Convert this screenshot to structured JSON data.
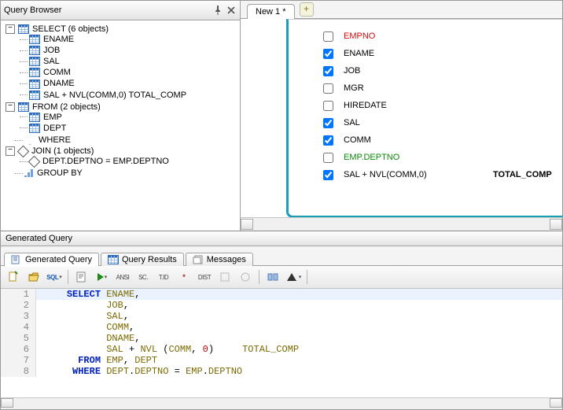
{
  "qb": {
    "title": "Query Browser",
    "tree": {
      "select": {
        "label": "SELECT   (6 objects)",
        "cols": [
          "ENAME",
          "JOB",
          "SAL",
          "COMM",
          "DNAME",
          "SAL + NVL(COMM,0) TOTAL_COMP"
        ]
      },
      "from": {
        "label": "FROM   (2 objects)",
        "tables": [
          "EMP",
          "DEPT"
        ]
      },
      "where": {
        "label": "WHERE"
      },
      "join": {
        "label": "JOIN   (1 objects)",
        "items": [
          "DEPT.DEPTNO = EMP.DEPTNO"
        ]
      },
      "groupby": {
        "label": "GROUP BY"
      }
    }
  },
  "editorTabs": {
    "new1": "New 1 *"
  },
  "columns": [
    {
      "name": "EMPNO",
      "checked": false,
      "cls": "c-red"
    },
    {
      "name": "ENAME",
      "checked": true
    },
    {
      "name": "JOB",
      "checked": true
    },
    {
      "name": "MGR",
      "checked": false
    },
    {
      "name": "HIREDATE",
      "checked": false
    },
    {
      "name": "SAL",
      "checked": true
    },
    {
      "name": "COMM",
      "checked": true
    },
    {
      "name": "EMP.DEPTNO",
      "checked": false,
      "cls": "c-green"
    },
    {
      "name": "SAL + NVL(COMM,0)",
      "checked": true,
      "alias": "TOTAL_COMP"
    }
  ],
  "gen": {
    "title": "Generated Query",
    "tabs": {
      "gq": "Generated Query",
      "qr": "Query Results",
      "msg": "Messages"
    },
    "toolbar": [
      "new",
      "open",
      "sql",
      "|",
      "fmt",
      "run",
      "ANSI",
      "SC.",
      "T.ID",
      "*",
      "DIST",
      "d1",
      "d2",
      "|",
      "t1",
      "t2",
      "|"
    ],
    "code": [
      {
        "n": 1,
        "hl": true,
        "tokens": [
          [
            "pad",
            "    "
          ],
          [
            "kw",
            "SELECT"
          ],
          [
            "txt",
            " "
          ],
          [
            "ident",
            "ENAME"
          ],
          [
            "txt",
            ","
          ]
        ]
      },
      {
        "n": 2,
        "tokens": [
          [
            "pad",
            "           "
          ],
          [
            "ident",
            "JOB"
          ],
          [
            "txt",
            ","
          ]
        ]
      },
      {
        "n": 3,
        "tokens": [
          [
            "pad",
            "           "
          ],
          [
            "ident",
            "SAL"
          ],
          [
            "txt",
            ","
          ]
        ]
      },
      {
        "n": 4,
        "tokens": [
          [
            "pad",
            "           "
          ],
          [
            "ident",
            "COMM"
          ],
          [
            "txt",
            ","
          ]
        ]
      },
      {
        "n": 5,
        "tokens": [
          [
            "pad",
            "           "
          ],
          [
            "ident",
            "DNAME"
          ],
          [
            "txt",
            ","
          ]
        ]
      },
      {
        "n": 6,
        "tokens": [
          [
            "pad",
            "           "
          ],
          [
            "ident",
            "SAL"
          ],
          [
            "txt",
            " + "
          ],
          [
            "ident",
            "NVL"
          ],
          [
            "txt",
            " ("
          ],
          [
            "ident",
            "COMM"
          ],
          [
            "txt",
            ", "
          ],
          [
            "num",
            "0"
          ],
          [
            "txt",
            ")     "
          ],
          [
            "ident",
            "TOTAL_COMP"
          ]
        ]
      },
      {
        "n": 7,
        "tokens": [
          [
            "pad",
            "      "
          ],
          [
            "kw",
            "FROM"
          ],
          [
            "txt",
            " "
          ],
          [
            "ident",
            "EMP"
          ],
          [
            "txt",
            ", "
          ],
          [
            "ident",
            "DEPT"
          ]
        ]
      },
      {
        "n": 8,
        "tokens": [
          [
            "pad",
            "     "
          ],
          [
            "kw",
            "WHERE"
          ],
          [
            "txt",
            " "
          ],
          [
            "ident",
            "DEPT"
          ],
          [
            "txt",
            "."
          ],
          [
            "ident",
            "DEPTNO"
          ],
          [
            "txt",
            " = "
          ],
          [
            "ident",
            "EMP"
          ],
          [
            "txt",
            "."
          ],
          [
            "ident",
            "DEPTNO"
          ]
        ]
      }
    ]
  },
  "colors": {
    "keyword": "#0020c0",
    "ident": "#7a6a00",
    "num": "#c00000",
    "accent": "#15a0b8"
  }
}
